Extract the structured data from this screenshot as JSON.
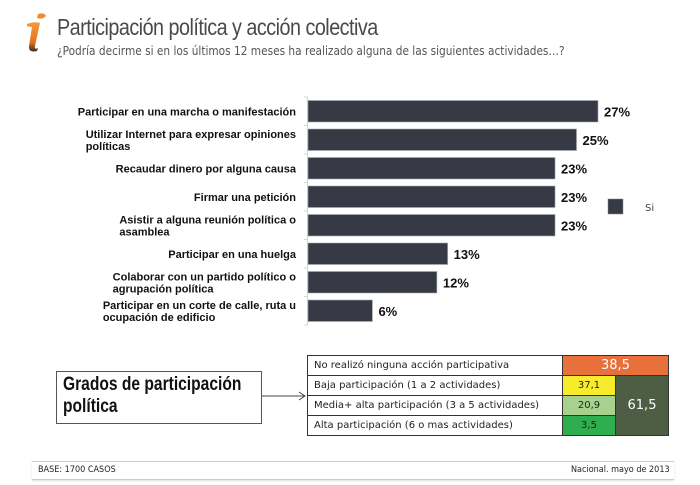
{
  "header": {
    "logo_icon": "info-i-icon",
    "title": "Participación política y acción colectiva",
    "subtitle": "¿Podría decirme si en los últimos 12 meses ha realizado alguna de las siguientes actividades…?"
  },
  "chart_data": {
    "type": "bar",
    "orientation": "horizontal",
    "title": "Participación política y acción colectiva",
    "xlabel": "",
    "ylabel": "",
    "xlim": [
      0,
      30
    ],
    "grid": false,
    "legend_position": "right",
    "categories": [
      [
        "Participar en una marcha o manifestación"
      ],
      [
        "Utilizar Internet para expresar opiniones",
        "políticas"
      ],
      [
        "Recaudar dinero por alguna causa"
      ],
      [
        "Firmar una petición"
      ],
      [
        "Asistir a alguna reunión política o",
        "asamblea"
      ],
      [
        "Participar en una huelga"
      ],
      [
        "Colaborar con un partido político o",
        "agrupación política"
      ],
      [
        "Participar en un corte de calle, ruta u",
        "ocupación de edificio"
      ]
    ],
    "series": [
      {
        "name": "Si",
        "color": "#373a44",
        "values": [
          27,
          25,
          23,
          23,
          23,
          13,
          12,
          6
        ],
        "labels": [
          "27%",
          "25%",
          "23%",
          "23%",
          "23%",
          "13%",
          "12%",
          "6%"
        ]
      }
    ]
  },
  "grados": {
    "box_title": "Grados de participación política",
    "rows": [
      {
        "label": "No realizó ninguna acción participativa",
        "value": "38,5",
        "color": "#e8703a"
      },
      {
        "label": "Baja participación (1 a 2 actividades)",
        "value": "37,1",
        "color": "#f7ec2c"
      },
      {
        "label": "Media+ alta participación (3 a 5 actividades)",
        "value": "20,9",
        "color": "#a9d18e"
      },
      {
        "label": "Alta participación (6 o mas actividades)",
        "value": "3,5",
        "color": "#2fae4f"
      }
    ],
    "total": {
      "value": "61,5",
      "color": "#4e5e45"
    }
  },
  "footer": {
    "base": "BASE: 1700 CASOS",
    "source": "Nacional. mayo de 2013"
  }
}
